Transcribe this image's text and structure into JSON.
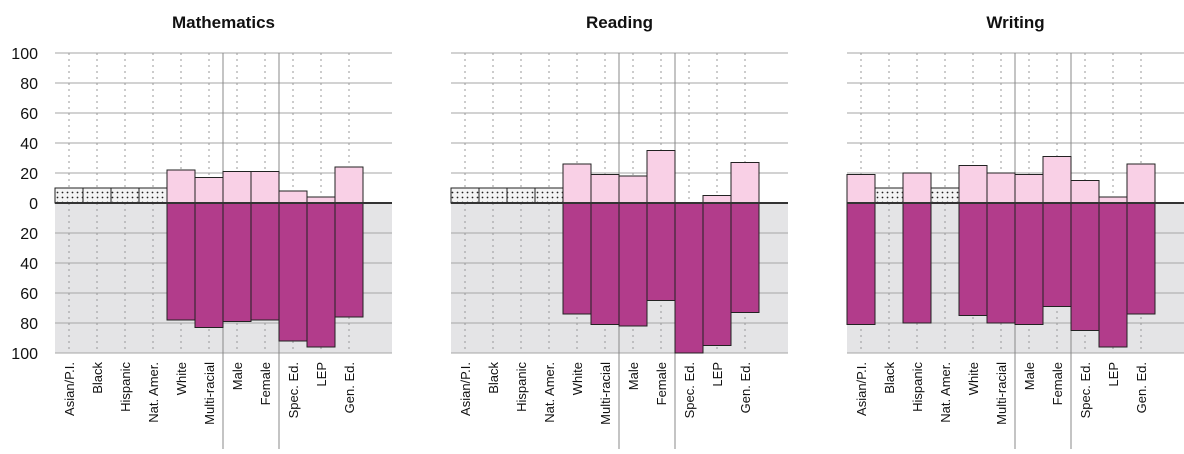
{
  "chart_data": [
    {
      "type": "bar",
      "title": "Mathematics",
      "categories": [
        "Asian/P.I.",
        "Black",
        "Hispanic",
        "Nat. Amer.",
        "White",
        "Multi-racial",
        "Male",
        "Female",
        "Spec. Ed.",
        "LEP",
        "Gen. Ed."
      ],
      "upper_values": [
        10,
        10,
        10,
        10,
        22,
        17,
        21,
        21,
        8,
        4,
        24
      ],
      "lower_values": [
        null,
        null,
        null,
        null,
        78,
        83,
        79,
        78,
        92,
        96,
        76
      ],
      "suppressed": [
        true,
        true,
        true,
        true,
        false,
        false,
        false,
        false,
        false,
        false,
        false
      ]
    },
    {
      "type": "bar",
      "title": "Reading",
      "categories": [
        "Asian/P.I.",
        "Black",
        "Hispanic",
        "Nat. Amer.",
        "White",
        "Multi-racial",
        "Male",
        "Female",
        "Spec. Ed.",
        "LEP",
        "Gen. Ed."
      ],
      "upper_values": [
        10,
        10,
        10,
        10,
        26,
        19,
        18,
        35,
        0,
        5,
        27
      ],
      "lower_values": [
        null,
        null,
        null,
        null,
        74,
        81,
        82,
        65,
        100,
        95,
        73
      ],
      "suppressed": [
        true,
        true,
        true,
        true,
        false,
        false,
        false,
        false,
        false,
        false,
        false
      ]
    },
    {
      "type": "bar",
      "title": "Writing",
      "categories": [
        "Asian/P.I.",
        "Black",
        "Hispanic",
        "Nat. Amer.",
        "White",
        "Multi-racial",
        "Male",
        "Female",
        "Spec. Ed.",
        "LEP",
        "Gen. Ed."
      ],
      "upper_values": [
        19,
        10,
        20,
        10,
        25,
        20,
        19,
        31,
        15,
        4,
        26
      ],
      "lower_values": [
        81,
        null,
        80,
        null,
        75,
        80,
        81,
        69,
        85,
        96,
        74
      ],
      "suppressed": [
        false,
        true,
        false,
        true,
        false,
        false,
        false,
        false,
        false,
        false,
        false
      ]
    }
  ],
  "y_axis": {
    "upper_ticks": [
      "100",
      "80",
      "60",
      "40",
      "20",
      "0"
    ],
    "lower_ticks": [
      "20",
      "40",
      "60",
      "80",
      "100"
    ],
    "upper_range": [
      0,
      100
    ],
    "lower_range": [
      0,
      100
    ]
  },
  "colors": {
    "upper_bar": "#f9d0e6",
    "lower_bar": "#b23c8b",
    "suppressed_bar": "#f2f2f2",
    "lower_background": "#e4e4e6",
    "gridline": "#a6a6a6",
    "zero_line": "#333333"
  },
  "style": {
    "grid": true,
    "legend": "none"
  }
}
